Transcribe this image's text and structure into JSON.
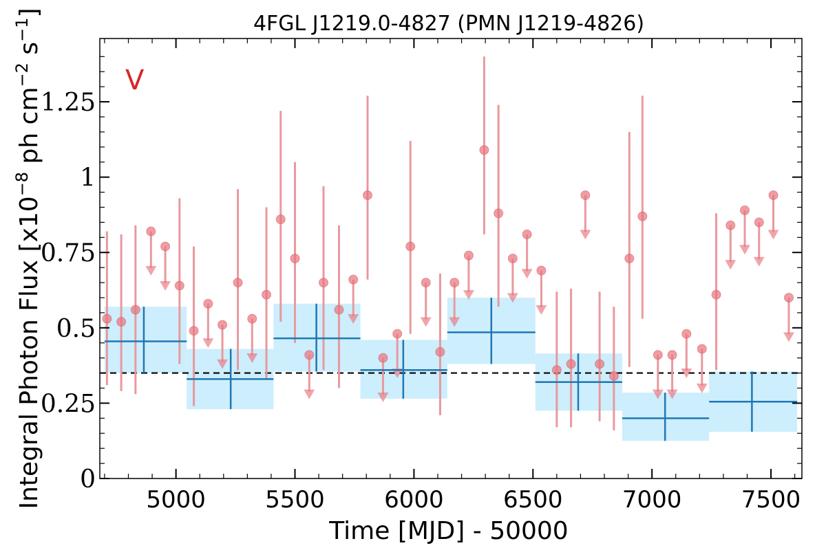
{
  "chart_data": {
    "type": "scatter",
    "title": "4FGL J1219.0-4827 (PMN J1219-4826)",
    "xlabel": "Time [MJD] - 50000",
    "ylabel": "Integral Photon Flux [x10^-8 ph cm^-2 s^-1]",
    "ylabel_parts": {
      "pre": "Integral Photon Flux [x10",
      "sup1": "−8",
      "mid": " ph cm",
      "sup2": "−2",
      "mid2": " s",
      "sup3": "−1",
      "post": "]"
    },
    "annotation": "V",
    "xlim": [
      4680,
      7630
    ],
    "ylim": [
      0,
      1.46
    ],
    "x_ticks": [
      5000,
      5500,
      6000,
      6500,
      7000,
      7500
    ],
    "x_tick_labels": [
      "5000",
      "5500",
      "6000",
      "6500",
      "7000",
      "7500"
    ],
    "y_ticks": [
      0,
      0.25,
      0.5,
      0.75,
      1,
      1.25
    ],
    "y_tick_labels": [
      "0",
      "0.25",
      "0.5",
      "0.75",
      "1",
      "1.25"
    ],
    "reference_line": {
      "y": 0.35,
      "style": "dashed",
      "color": "#000000"
    },
    "colors": {
      "points": "#e8747c",
      "errorbars": "#e8999e",
      "bins": "#1f77b4",
      "bin_fill": "#cdeefc"
    },
    "detections": [
      {
        "x": 4710,
        "y": 0.53,
        "lo": 0.31,
        "hi": 0.82
      },
      {
        "x": 4770,
        "y": 0.52,
        "lo": 0.29,
        "hi": 0.81
      },
      {
        "x": 4830,
        "y": 0.56,
        "lo": 0.28,
        "hi": 0.84
      },
      {
        "x": 5015,
        "y": 0.64,
        "lo": 0.38,
        "hi": 0.93
      },
      {
        "x": 5075,
        "y": 0.49,
        "lo": 0.24,
        "hi": 0.77
      },
      {
        "x": 5260,
        "y": 0.65,
        "lo": 0.36,
        "hi": 0.96
      },
      {
        "x": 5380,
        "y": 0.61,
        "lo": 0.33,
        "hi": 0.9
      },
      {
        "x": 5440,
        "y": 0.86,
        "lo": 0.52,
        "hi": 1.22
      },
      {
        "x": 5500,
        "y": 0.73,
        "lo": 0.45,
        "hi": 1.05
      },
      {
        "x": 5620,
        "y": 0.65,
        "lo": 0.36,
        "hi": 0.97
      },
      {
        "x": 5685,
        "y": 0.56,
        "lo": 0.3,
        "hi": 0.84
      },
      {
        "x": 5805,
        "y": 0.94,
        "lo": 0.66,
        "hi": 1.27
      },
      {
        "x": 5985,
        "y": 0.77,
        "lo": 0.48,
        "hi": 1.12
      },
      {
        "x": 6110,
        "y": 0.42,
        "lo": 0.21,
        "hi": 0.68
      },
      {
        "x": 6295,
        "y": 1.09,
        "lo": 0.81,
        "hi": 1.4
      },
      {
        "x": 6355,
        "y": 0.88,
        "lo": 0.57,
        "hi": 1.24
      },
      {
        "x": 6600,
        "y": 0.36,
        "lo": 0.17,
        "hi": 0.62
      },
      {
        "x": 6660,
        "y": 0.38,
        "lo": 0.17,
        "hi": 0.63
      },
      {
        "x": 6780,
        "y": 0.38,
        "lo": 0.19,
        "hi": 0.62
      },
      {
        "x": 6840,
        "y": 0.34,
        "lo": 0.16,
        "hi": 0.57
      },
      {
        "x": 6905,
        "y": 0.73,
        "lo": 0.37,
        "hi": 1.15
      },
      {
        "x": 6960,
        "y": 0.87,
        "lo": 0.53,
        "hi": 1.27
      },
      {
        "x": 7270,
        "y": 0.61,
        "lo": 0.36,
        "hi": 0.88
      }
    ],
    "upper_limits": [
      {
        "x": 4895,
        "y": 0.82,
        "arrow": 0.68
      },
      {
        "x": 4955,
        "y": 0.77,
        "arrow": 0.63
      },
      {
        "x": 5135,
        "y": 0.58,
        "arrow": 0.44
      },
      {
        "x": 5195,
        "y": 0.51,
        "arrow": 0.37
      },
      {
        "x": 5320,
        "y": 0.53,
        "arrow": 0.39
      },
      {
        "x": 5560,
        "y": 0.41,
        "arrow": 0.27
      },
      {
        "x": 5745,
        "y": 0.66,
        "arrow": 0.52
      },
      {
        "x": 5870,
        "y": 0.4,
        "arrow": 0.26
      },
      {
        "x": 5930,
        "y": 0.48,
        "arrow": 0.34
      },
      {
        "x": 6050,
        "y": 0.65,
        "arrow": 0.51
      },
      {
        "x": 6170,
        "y": 0.65,
        "arrow": 0.51
      },
      {
        "x": 6230,
        "y": 0.74,
        "arrow": 0.6
      },
      {
        "x": 6415,
        "y": 0.73,
        "arrow": 0.59
      },
      {
        "x": 6475,
        "y": 0.81,
        "arrow": 0.67
      },
      {
        "x": 6535,
        "y": 0.69,
        "arrow": 0.55
      },
      {
        "x": 6720,
        "y": 0.94,
        "arrow": 0.8
      },
      {
        "x": 7025,
        "y": 0.41,
        "arrow": 0.27
      },
      {
        "x": 7085,
        "y": 0.41,
        "arrow": 0.27
      },
      {
        "x": 7145,
        "y": 0.48,
        "arrow": 0.34
      },
      {
        "x": 7210,
        "y": 0.43,
        "arrow": 0.29
      },
      {
        "x": 7330,
        "y": 0.84,
        "arrow": 0.7
      },
      {
        "x": 7390,
        "y": 0.89,
        "arrow": 0.75
      },
      {
        "x": 7450,
        "y": 0.85,
        "arrow": 0.71
      },
      {
        "x": 7510,
        "y": 0.94,
        "arrow": 0.8
      },
      {
        "x": 7575,
        "y": 0.6,
        "arrow": 0.46
      }
    ],
    "bins": [
      {
        "x0": 4700,
        "x1": 5045,
        "xc": 4865,
        "y": 0.455,
        "lo": 0.35,
        "hi": 0.57
      },
      {
        "x0": 5045,
        "x1": 5410,
        "xc": 5230,
        "y": 0.33,
        "lo": 0.23,
        "hi": 0.43
      },
      {
        "x0": 5410,
        "x1": 5775,
        "xc": 5590,
        "y": 0.465,
        "lo": 0.355,
        "hi": 0.58
      },
      {
        "x0": 5775,
        "x1": 6140,
        "xc": 5955,
        "y": 0.36,
        "lo": 0.265,
        "hi": 0.46
      },
      {
        "x0": 6140,
        "x1": 6510,
        "xc": 6325,
        "y": 0.485,
        "lo": 0.38,
        "hi": 0.6
      },
      {
        "x0": 6510,
        "x1": 6875,
        "xc": 6690,
        "y": 0.32,
        "lo": 0.225,
        "hi": 0.415
      },
      {
        "x0": 6875,
        "x1": 7240,
        "xc": 7055,
        "y": 0.2,
        "lo": 0.125,
        "hi": 0.285
      },
      {
        "x0": 7240,
        "x1": 7610,
        "xc": 7420,
        "y": 0.255,
        "lo": 0.155,
        "hi": 0.355
      }
    ]
  }
}
